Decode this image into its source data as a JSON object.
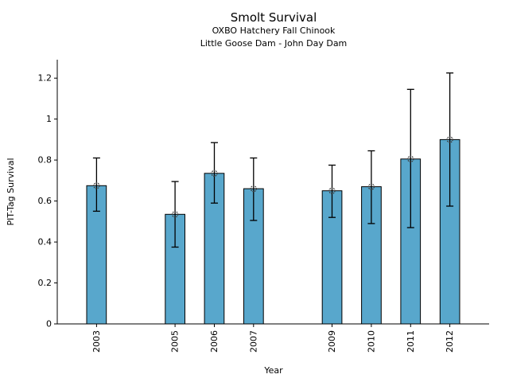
{
  "chart_data": {
    "type": "bar",
    "title": "Smolt Survival",
    "subtitle": [
      "OXBO Hatchery Fall Chinook",
      "Little Goose Dam - John Day Dam"
    ],
    "xlabel": "Year",
    "ylabel": "PIT-Tag Survival",
    "categories": [
      2003,
      2005,
      2006,
      2007,
      2009,
      2010,
      2011,
      2012
    ],
    "values": [
      0.675,
      0.535,
      0.735,
      0.66,
      0.65,
      0.67,
      0.805,
      0.9
    ],
    "error_low": [
      0.55,
      0.375,
      0.59,
      0.505,
      0.52,
      0.49,
      0.47,
      0.575
    ],
    "error_high": [
      0.81,
      0.695,
      0.885,
      0.81,
      0.775,
      0.845,
      1.145,
      1.225
    ],
    "xlim": [
      2002,
      2013
    ],
    "ylim": [
      0,
      1.29
    ],
    "yticks": [
      0,
      0.2,
      0.4,
      0.6,
      0.8,
      1,
      1.2
    ],
    "ytick_labels": [
      "0",
      "0.2",
      "0.4",
      "0.6",
      "0.8",
      "1",
      "1.2"
    ],
    "xtick_labels": [
      "2003",
      "2005",
      "2006",
      "2007",
      "2009",
      "2010",
      "2011",
      "2012"
    ],
    "xtick_rotation": 90,
    "bar_width_years": 0.5,
    "bar_color": "#58A7CC",
    "bar_edge_color": "#000000",
    "errorbar_color": "#000000",
    "marker": "open-circle",
    "marker_color": "#3d3d3d",
    "grid": false,
    "legend": "none"
  }
}
